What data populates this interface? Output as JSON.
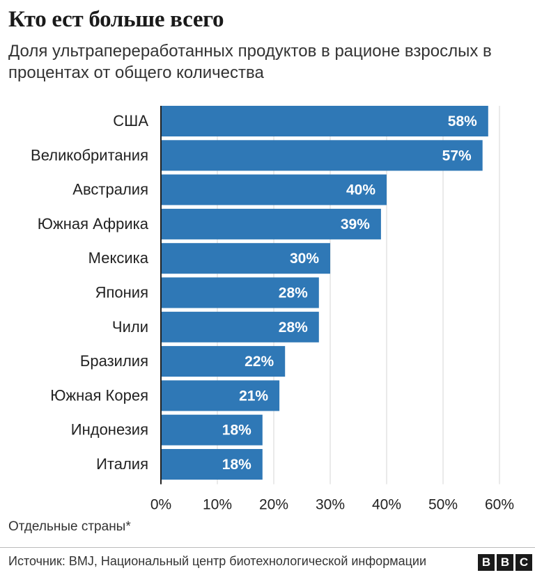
{
  "header": {
    "title": "Кто ест больше всего",
    "subtitle": "Доля ультрапереработанных продуктов в рационе взрослых в процентах от общего количества"
  },
  "footer": {
    "note": "Отдельные страны*",
    "source": "Источник: BMJ, Национальный центр биотехнологической информации",
    "logo_letters": [
      "B",
      "B",
      "C"
    ]
  },
  "chart_data": {
    "type": "bar",
    "orientation": "horizontal",
    "title": "Кто ест больше всего",
    "subtitle": "Доля ультрапереработанных продуктов в рационе взрослых в процентах от общего количества",
    "categories": [
      "США",
      "Великобритания",
      "Австралия",
      "Южная Африка",
      "Мексика",
      "Япония",
      "Чили",
      "Бразилия",
      "Южная Корея",
      "Индонезия",
      "Италия"
    ],
    "values": [
      58,
      57,
      40,
      39,
      30,
      28,
      28,
      22,
      21,
      18,
      18
    ],
    "value_labels": [
      "58%",
      "57%",
      "40%",
      "39%",
      "30%",
      "28%",
      "28%",
      "22%",
      "21%",
      "18%",
      "18%"
    ],
    "xlim": [
      0,
      60
    ],
    "ticks": [
      0,
      10,
      20,
      30,
      40,
      50,
      60
    ],
    "tick_labels": [
      "0%",
      "10%",
      "20%",
      "30%",
      "40%",
      "50%",
      "60%"
    ],
    "grid": true,
    "bar_color": "#2f78b6",
    "grid_color": "#d6d6d6",
    "axis_color": "#222222"
  }
}
